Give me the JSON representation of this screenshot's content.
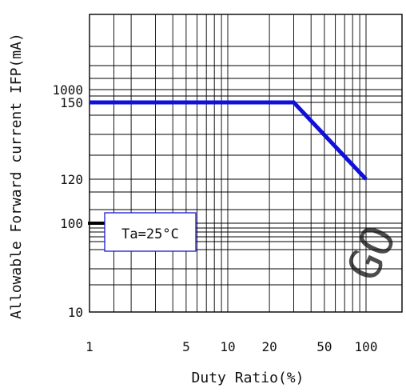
{
  "chart_data": {
    "type": "line",
    "title": "",
    "xlabel": "Duty Ratio(%)",
    "ylabel": "Allowable Forward current IFP(mA)",
    "x_scale": "log",
    "y_scale": "irregular",
    "x_tick_labels": [
      "1",
      "5",
      "10",
      "20",
      "50",
      "100"
    ],
    "y_tick_labels": [
      "1000",
      "150",
      "120",
      "100",
      "10"
    ],
    "grid": true,
    "series": [
      {
        "x": [
          1,
          30,
          100
        ],
        "y": [
          150,
          150,
          120
        ]
      }
    ],
    "annotation": "Ta=25°C",
    "watermark": "GO",
    "colors": {
      "series": "#1010dd",
      "grid": "#000000",
      "marker": "#000000",
      "watermark": "#bdbdbd"
    }
  }
}
